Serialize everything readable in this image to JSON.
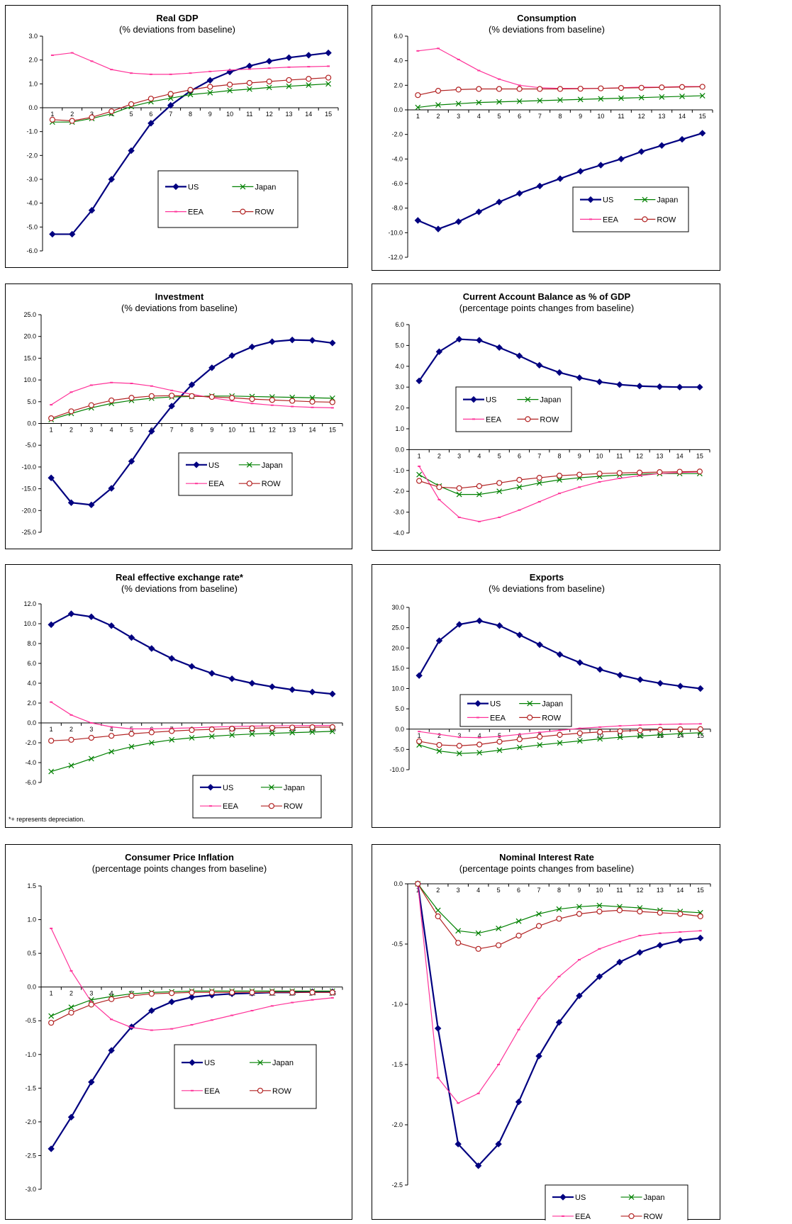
{
  "legend": {
    "us": "US",
    "japan": "Japan",
    "eea": "EEA",
    "row": "ROW"
  },
  "colors": {
    "us": "#000080",
    "japan": "#008000",
    "eea": "#ff3399",
    "row": "#b22222"
  },
  "chart_data": [
    {
      "id": "real-gdp",
      "type": "line",
      "title": "Real GDP",
      "subtitle": "(% deviations from baseline)",
      "x": [
        1,
        2,
        3,
        4,
        5,
        6,
        7,
        8,
        9,
        10,
        11,
        12,
        13,
        14,
        15
      ],
      "ylim": [
        -6,
        3
      ],
      "ystep": 1,
      "ydec": 1,
      "series": [
        {
          "key": "us",
          "name": "US",
          "values": [
            -5.3,
            -5.3,
            -4.3,
            -3.0,
            -1.8,
            -0.65,
            0.1,
            0.7,
            1.15,
            1.5,
            1.75,
            1.95,
            2.1,
            2.2,
            2.3
          ]
        },
        {
          "key": "japan",
          "name": "Japan",
          "values": [
            -0.6,
            -0.6,
            -0.45,
            -0.25,
            0.05,
            0.25,
            0.4,
            0.55,
            0.63,
            0.72,
            0.78,
            0.85,
            0.9,
            0.95,
            1.0
          ]
        },
        {
          "key": "eea",
          "name": "EEA",
          "values": [
            2.2,
            2.3,
            1.95,
            1.6,
            1.45,
            1.4,
            1.4,
            1.45,
            1.52,
            1.58,
            1.62,
            1.66,
            1.7,
            1.72,
            1.74
          ]
        },
        {
          "key": "row",
          "name": "ROW",
          "values": [
            -0.5,
            -0.55,
            -0.4,
            -0.15,
            0.15,
            0.38,
            0.58,
            0.75,
            0.88,
            0.97,
            1.04,
            1.1,
            1.16,
            1.21,
            1.26
          ]
        }
      ]
    },
    {
      "id": "consumption",
      "type": "line",
      "title": "Consumption",
      "subtitle": "(% deviations from baseline)",
      "x": [
        1,
        2,
        3,
        4,
        5,
        6,
        7,
        8,
        9,
        10,
        11,
        12,
        13,
        14,
        15
      ],
      "ylim": [
        -12,
        6
      ],
      "ystep": 2,
      "ydec": 1,
      "series": [
        {
          "key": "us",
          "name": "US",
          "values": [
            -9.0,
            -9.7,
            -9.1,
            -8.3,
            -7.5,
            -6.8,
            -6.2,
            -5.6,
            -5.0,
            -4.5,
            -4.0,
            -3.4,
            -2.9,
            -2.4,
            -1.9
          ]
        },
        {
          "key": "japan",
          "name": "Japan",
          "values": [
            0.2,
            0.4,
            0.5,
            0.6,
            0.65,
            0.7,
            0.75,
            0.8,
            0.85,
            0.9,
            0.95,
            1.0,
            1.05,
            1.1,
            1.15
          ]
        },
        {
          "key": "eea",
          "name": "EEA",
          "values": [
            4.8,
            5.0,
            4.1,
            3.2,
            2.5,
            2.0,
            1.8,
            1.75,
            1.75,
            1.75,
            1.8,
            1.85,
            1.85,
            1.9,
            1.9
          ]
        },
        {
          "key": "row",
          "name": "ROW",
          "values": [
            1.2,
            1.55,
            1.65,
            1.7,
            1.7,
            1.7,
            1.7,
            1.7,
            1.72,
            1.75,
            1.78,
            1.8,
            1.83,
            1.86,
            1.88
          ]
        }
      ]
    },
    {
      "id": "investment",
      "type": "line",
      "title": "Investment",
      "subtitle": "(% deviations from baseline)",
      "x": [
        1,
        2,
        3,
        4,
        5,
        6,
        7,
        8,
        9,
        10,
        11,
        12,
        13,
        14,
        15
      ],
      "ylim": [
        -25,
        25
      ],
      "ystep": 5,
      "ydec": 1,
      "series": [
        {
          "key": "us",
          "name": "US",
          "values": [
            -12.5,
            -18.2,
            -18.7,
            -14.9,
            -8.7,
            -1.8,
            4.0,
            8.9,
            12.8,
            15.6,
            17.6,
            18.8,
            19.2,
            19.1,
            18.5
          ]
        },
        {
          "key": "japan",
          "name": "Japan",
          "values": [
            0.9,
            2.3,
            3.6,
            4.6,
            5.3,
            5.8,
            6.1,
            6.2,
            6.3,
            6.3,
            6.2,
            6.1,
            6.0,
            5.9,
            5.8
          ]
        },
        {
          "key": "eea",
          "name": "EEA",
          "values": [
            4.3,
            7.2,
            8.8,
            9.4,
            9.2,
            8.6,
            7.6,
            6.7,
            5.9,
            5.2,
            4.6,
            4.2,
            3.9,
            3.7,
            3.6
          ]
        },
        {
          "key": "row",
          "name": "ROW",
          "values": [
            1.2,
            2.8,
            4.2,
            5.3,
            5.9,
            6.3,
            6.4,
            6.3,
            6.1,
            5.9,
            5.6,
            5.4,
            5.2,
            5.0,
            4.9
          ]
        }
      ]
    },
    {
      "id": "current-account",
      "type": "line",
      "title": "Current Account Balance as % of GDP",
      "subtitle": "(percentage points changes from baseline)",
      "x": [
        1,
        2,
        3,
        4,
        5,
        6,
        7,
        8,
        9,
        10,
        11,
        12,
        13,
        14,
        15
      ],
      "ylim": [
        -4,
        6
      ],
      "ystep": 1,
      "ydec": 1,
      "series": [
        {
          "key": "us",
          "name": "US",
          "values": [
            3.3,
            4.7,
            5.3,
            5.25,
            4.9,
            4.5,
            4.05,
            3.7,
            3.45,
            3.25,
            3.12,
            3.05,
            3.02,
            3.0,
            3.0
          ]
        },
        {
          "key": "japan",
          "name": "Japan",
          "values": [
            -1.2,
            -1.75,
            -2.15,
            -2.15,
            -2.0,
            -1.8,
            -1.6,
            -1.45,
            -1.35,
            -1.28,
            -1.22,
            -1.18,
            -1.15,
            -1.15,
            -1.15
          ]
        },
        {
          "key": "eea",
          "name": "EEA",
          "values": [
            -0.8,
            -2.4,
            -3.25,
            -3.45,
            -3.25,
            -2.9,
            -2.5,
            -2.1,
            -1.8,
            -1.55,
            -1.38,
            -1.25,
            -1.15,
            -1.1,
            -1.07
          ]
        },
        {
          "key": "row",
          "name": "ROW",
          "values": [
            -1.5,
            -1.8,
            -1.85,
            -1.75,
            -1.6,
            -1.45,
            -1.35,
            -1.25,
            -1.2,
            -1.15,
            -1.12,
            -1.1,
            -1.08,
            -1.06,
            -1.05
          ]
        }
      ]
    },
    {
      "id": "reer",
      "type": "line",
      "title": "Real effective exchange rate*",
      "subtitle": "(% deviations from baseline)",
      "note": "*+ represents depreciation.",
      "x": [
        1,
        2,
        3,
        4,
        5,
        6,
        7,
        8,
        9,
        10,
        11,
        12,
        13,
        14,
        15
      ],
      "ylim": [
        -6,
        12
      ],
      "ystep": 2,
      "ydec": 1,
      "series": [
        {
          "key": "us",
          "name": "US",
          "values": [
            9.9,
            11.0,
            10.7,
            9.8,
            8.6,
            7.5,
            6.5,
            5.7,
            5.0,
            4.45,
            4.0,
            3.65,
            3.35,
            3.12,
            2.92
          ]
        },
        {
          "key": "japan",
          "name": "Japan",
          "values": [
            -4.9,
            -4.3,
            -3.6,
            -2.9,
            -2.4,
            -2.0,
            -1.7,
            -1.5,
            -1.35,
            -1.22,
            -1.12,
            -1.05,
            -0.98,
            -0.92,
            -0.85
          ]
        },
        {
          "key": "eea",
          "name": "EEA",
          "values": [
            2.1,
            0.8,
            0.0,
            -0.4,
            -0.6,
            -0.6,
            -0.55,
            -0.5,
            -0.42,
            -0.36,
            -0.32,
            -0.3,
            -0.28,
            -0.26,
            -0.25
          ]
        },
        {
          "key": "row",
          "name": "ROW",
          "values": [
            -1.8,
            -1.7,
            -1.5,
            -1.3,
            -1.1,
            -0.95,
            -0.82,
            -0.72,
            -0.65,
            -0.58,
            -0.53,
            -0.49,
            -0.46,
            -0.43,
            -0.42
          ]
        }
      ]
    },
    {
      "id": "exports",
      "type": "line",
      "title": "Exports",
      "subtitle": "(% deviations from baseline)",
      "x": [
        1,
        2,
        3,
        4,
        5,
        6,
        7,
        8,
        9,
        10,
        11,
        12,
        13,
        14,
        15
      ],
      "ylim": [
        -10,
        30
      ],
      "ystep": 5,
      "ydec": 1,
      "series": [
        {
          "key": "us",
          "name": "US",
          "values": [
            13.2,
            21.8,
            25.8,
            26.7,
            25.5,
            23.2,
            20.8,
            18.4,
            16.4,
            14.7,
            13.3,
            12.2,
            11.3,
            10.6,
            10.0
          ]
        },
        {
          "key": "japan",
          "name": "Japan",
          "values": [
            -3.9,
            -5.4,
            -6.0,
            -5.8,
            -5.2,
            -4.5,
            -3.9,
            -3.4,
            -2.9,
            -2.4,
            -2.0,
            -1.7,
            -1.4,
            -1.1,
            -0.9
          ]
        },
        {
          "key": "eea",
          "name": "EEA",
          "values": [
            -0.6,
            -1.3,
            -2.0,
            -2.1,
            -1.8,
            -1.3,
            -0.8,
            -0.3,
            0.2,
            0.5,
            0.8,
            1.0,
            1.15,
            1.25,
            1.3
          ]
        },
        {
          "key": "row",
          "name": "ROW",
          "values": [
            -3.0,
            -3.9,
            -4.1,
            -3.8,
            -3.1,
            -2.5,
            -1.9,
            -1.4,
            -1.0,
            -0.7,
            -0.5,
            -0.3,
            -0.15,
            -0.05,
            0.0
          ]
        }
      ]
    },
    {
      "id": "cpi",
      "type": "line",
      "title": "Consumer Price Inflation",
      "subtitle": "(percentage points changes from baseline)",
      "x": [
        1,
        2,
        3,
        4,
        5,
        6,
        7,
        8,
        9,
        10,
        11,
        12,
        13,
        14,
        15
      ],
      "ylim": [
        -3,
        1.5
      ],
      "ystep": 0.5,
      "ydec": 1,
      "series": [
        {
          "key": "us",
          "name": "US",
          "values": [
            -2.4,
            -1.93,
            -1.41,
            -0.94,
            -0.59,
            -0.35,
            -0.22,
            -0.15,
            -0.12,
            -0.1,
            -0.09,
            -0.08,
            -0.08,
            -0.07,
            -0.07
          ]
        },
        {
          "key": "japan",
          "name": "Japan",
          "values": [
            -0.43,
            -0.3,
            -0.19,
            -0.14,
            -0.1,
            -0.08,
            -0.07,
            -0.06,
            -0.06,
            -0.06,
            -0.06,
            -0.06,
            -0.06,
            -0.06,
            -0.06
          ]
        },
        {
          "key": "eea",
          "name": "EEA",
          "values": [
            0.87,
            0.24,
            -0.22,
            -0.48,
            -0.6,
            -0.64,
            -0.62,
            -0.56,
            -0.49,
            -0.42,
            -0.35,
            -0.28,
            -0.23,
            -0.19,
            -0.16
          ]
        },
        {
          "key": "row",
          "name": "ROW",
          "values": [
            -0.53,
            -0.38,
            -0.26,
            -0.18,
            -0.13,
            -0.1,
            -0.09,
            -0.08,
            -0.08,
            -0.08,
            -0.08,
            -0.08,
            -0.08,
            -0.08,
            -0.08
          ]
        }
      ]
    },
    {
      "id": "interest-rate",
      "type": "line",
      "title": "Nominal Interest Rate",
      "subtitle": "(percentage points changes from baseline)",
      "x": [
        1,
        2,
        3,
        4,
        5,
        6,
        7,
        8,
        9,
        10,
        11,
        12,
        13,
        14,
        15
      ],
      "ylim": [
        -2.5,
        0
      ],
      "ystep": 0.5,
      "ydec": 1,
      "series": [
        {
          "key": "us",
          "name": "US",
          "values": [
            0.0,
            -1.2,
            -2.16,
            -2.34,
            -2.16,
            -1.81,
            -1.43,
            -1.15,
            -0.93,
            -0.77,
            -0.65,
            -0.57,
            -0.51,
            -0.47,
            -0.45
          ]
        },
        {
          "key": "japan",
          "name": "Japan",
          "values": [
            0.0,
            -0.22,
            -0.39,
            -0.41,
            -0.37,
            -0.31,
            -0.25,
            -0.21,
            -0.19,
            -0.18,
            -0.19,
            -0.2,
            -0.22,
            -0.23,
            -0.24
          ]
        },
        {
          "key": "eea",
          "name": "EEA",
          "values": [
            0.0,
            -1.61,
            -1.82,
            -1.74,
            -1.5,
            -1.21,
            -0.95,
            -0.77,
            -0.63,
            -0.54,
            -0.48,
            -0.43,
            -0.41,
            -0.4,
            -0.39
          ]
        },
        {
          "key": "row",
          "name": "ROW",
          "values": [
            0.0,
            -0.27,
            -0.49,
            -0.54,
            -0.51,
            -0.43,
            -0.35,
            -0.29,
            -0.25,
            -0.23,
            -0.22,
            -0.23,
            -0.24,
            -0.25,
            -0.27
          ]
        }
      ]
    }
  ]
}
